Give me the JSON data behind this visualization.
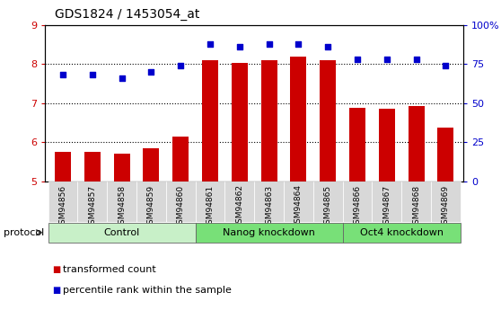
{
  "title": "GDS1824 / 1453054_at",
  "samples": [
    "GSM94856",
    "GSM94857",
    "GSM94858",
    "GSM94859",
    "GSM94860",
    "GSM94861",
    "GSM94862",
    "GSM94863",
    "GSM94864",
    "GSM94865",
    "GSM94866",
    "GSM94867",
    "GSM94868",
    "GSM94869"
  ],
  "transformed_count": [
    5.75,
    5.75,
    5.7,
    5.85,
    6.15,
    8.1,
    8.02,
    8.1,
    8.18,
    8.1,
    6.88,
    6.85,
    6.92,
    6.38
  ],
  "percentile_rank": [
    68,
    68,
    66,
    70,
    74,
    88,
    86,
    88,
    88,
    86,
    78,
    78,
    78,
    74
  ],
  "groups": [
    {
      "label": "Control",
      "start": 0,
      "end": 5,
      "color": "#c8f0c8"
    },
    {
      "label": "Nanog knockdown",
      "start": 5,
      "end": 10,
      "color": "#78e078"
    },
    {
      "label": "Oct4 knockdown",
      "start": 10,
      "end": 14,
      "color": "#78e078"
    }
  ],
  "bar_color": "#cc0000",
  "dot_color": "#0000cc",
  "ylim_left": [
    5,
    9
  ],
  "ylim_right": [
    0,
    100
  ],
  "yticks_left": [
    5,
    6,
    7,
    8,
    9
  ],
  "yticks_right": [
    0,
    25,
    50,
    75,
    100
  ],
  "ytick_labels_right": [
    "0",
    "25",
    "50",
    "75",
    "100%"
  ],
  "grid_values": [
    6,
    7,
    8
  ],
  "bg_color": "#ffffff",
  "tick_bg_color": "#d8d8d8",
  "legend_items": [
    {
      "label": "transformed count",
      "color": "#cc0000"
    },
    {
      "label": "percentile rank within the sample",
      "color": "#0000cc"
    }
  ],
  "protocol_label": "protocol"
}
